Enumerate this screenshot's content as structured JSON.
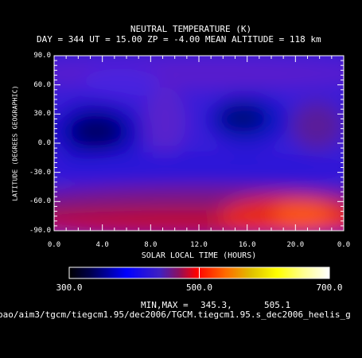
{
  "title": "NEUTRAL TEMPERATURE (K)",
  "subtitle": "DAY = 344   UT = 15.00   ZP =   -4.00   MEAN ALTITUDE = 118 km",
  "colorbar": {
    "tick_labels": [
      "300.0",
      "500.0",
      "700.0"
    ],
    "range": [
      300,
      700
    ],
    "colors": [
      "#000000",
      "#0000ff",
      "#ff0000",
      "#ffff00",
      "#ffffff"
    ]
  },
  "minmax": {
    "label": "MIN,MAX =",
    "min": "345.3,",
    "max": "505.1"
  },
  "file_path": "pao/aim3/tgcm/tiegcm1.95/dec2006/TGCM.tiegcm1.95.s_dec2006_heelis_g",
  "chart_data": {
    "type": "heatmap",
    "title": "NEUTRAL TEMPERATURE (K)",
    "xlabel": "SOLAR LOCAL TIME (HOURS)",
    "ylabel": "LATITUDE (DEGREES GEOGRAPHIC)",
    "xlim": [
      0,
      24
    ],
    "ylim": [
      -90,
      90
    ],
    "x_tick_labels": [
      "0.0",
      "4.0",
      "8.0",
      "12.0",
      "16.0",
      "20.0",
      "0.0"
    ],
    "y_tick_labels": [
      "90.0",
      "60.0",
      "30.0",
      "0.0",
      "-30.0",
      "-60.0",
      "-90.0"
    ],
    "value_range": [
      345.3,
      505.1
    ],
    "colorbar_range": [
      300,
      700
    ],
    "grid": false
  }
}
